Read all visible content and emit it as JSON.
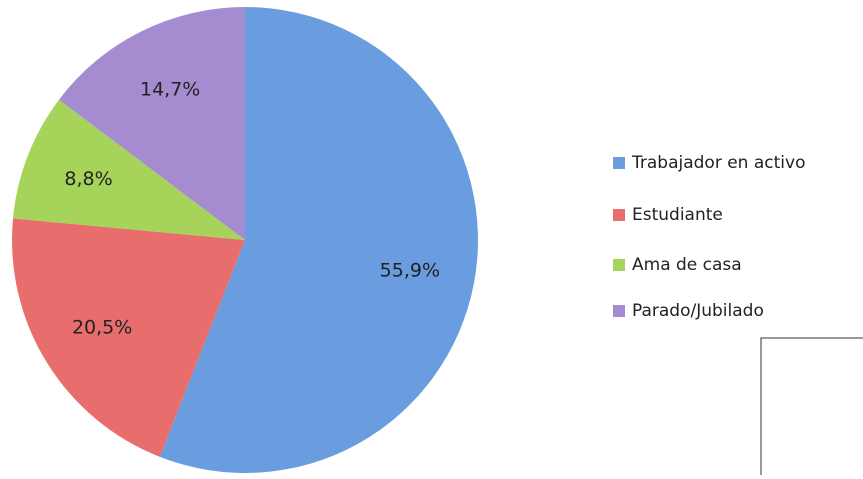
{
  "chart_data": {
    "type": "pie",
    "categories": [
      "Trabajador en activo",
      "Estudiante",
      "Ama de casa",
      "Parado/Jubilado"
    ],
    "values": [
      55.9,
      20.5,
      8.8,
      14.7
    ],
    "value_labels": [
      "55,9%",
      "20,5%",
      "8,8%",
      "14,7%"
    ],
    "colors": [
      "#6a9de0",
      "#e86e6e",
      "#a6d45a",
      "#a58bd0"
    ],
    "legend": "right"
  }
}
